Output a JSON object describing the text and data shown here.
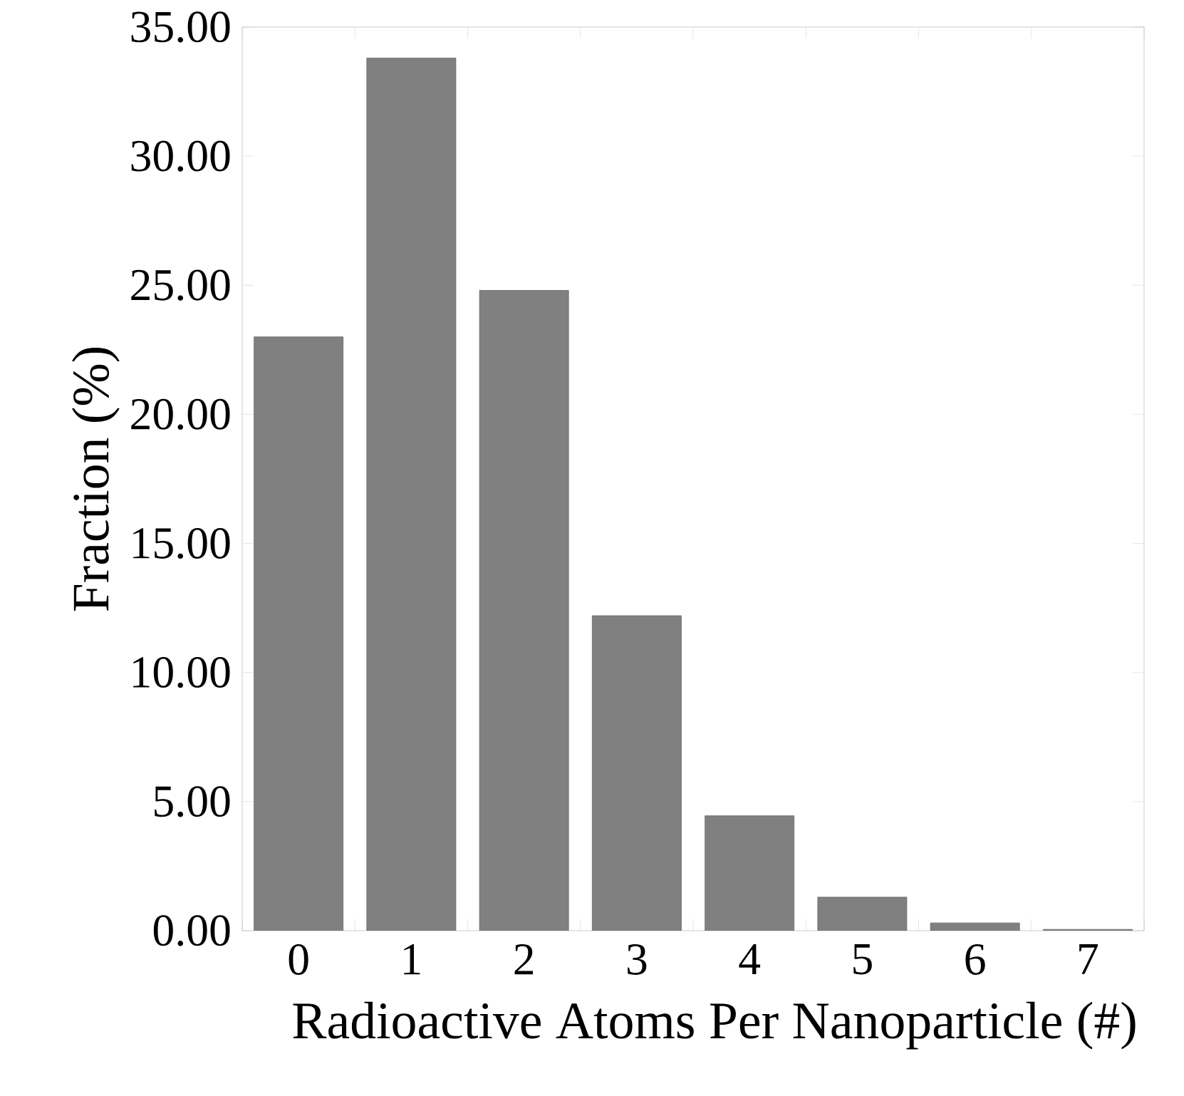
{
  "chart_data": {
    "type": "bar",
    "xlabel": "Radioactive Atoms Per Nanoparticle (#)",
    "ylabel": "Fraction (%)",
    "categories": [
      "0",
      "1",
      "2",
      "3",
      "4",
      "5",
      "6",
      "7"
    ],
    "values": [
      23.0,
      33.8,
      24.8,
      12.2,
      4.45,
      1.3,
      0.3,
      0.05
    ],
    "color": "#808080",
    "ylim": [
      0,
      35
    ],
    "yticks": [
      {
        "value": 0,
        "label": "0.00"
      },
      {
        "value": 5,
        "label": "5.00"
      },
      {
        "value": 10,
        "label": "10.00"
      },
      {
        "value": 15,
        "label": "15.00"
      },
      {
        "value": 20,
        "label": "20.00"
      },
      {
        "value": 25,
        "label": "25.00"
      },
      {
        "value": 30,
        "label": "30.00"
      },
      {
        "value": 35,
        "label": "35.00"
      }
    ],
    "grid": false
  }
}
